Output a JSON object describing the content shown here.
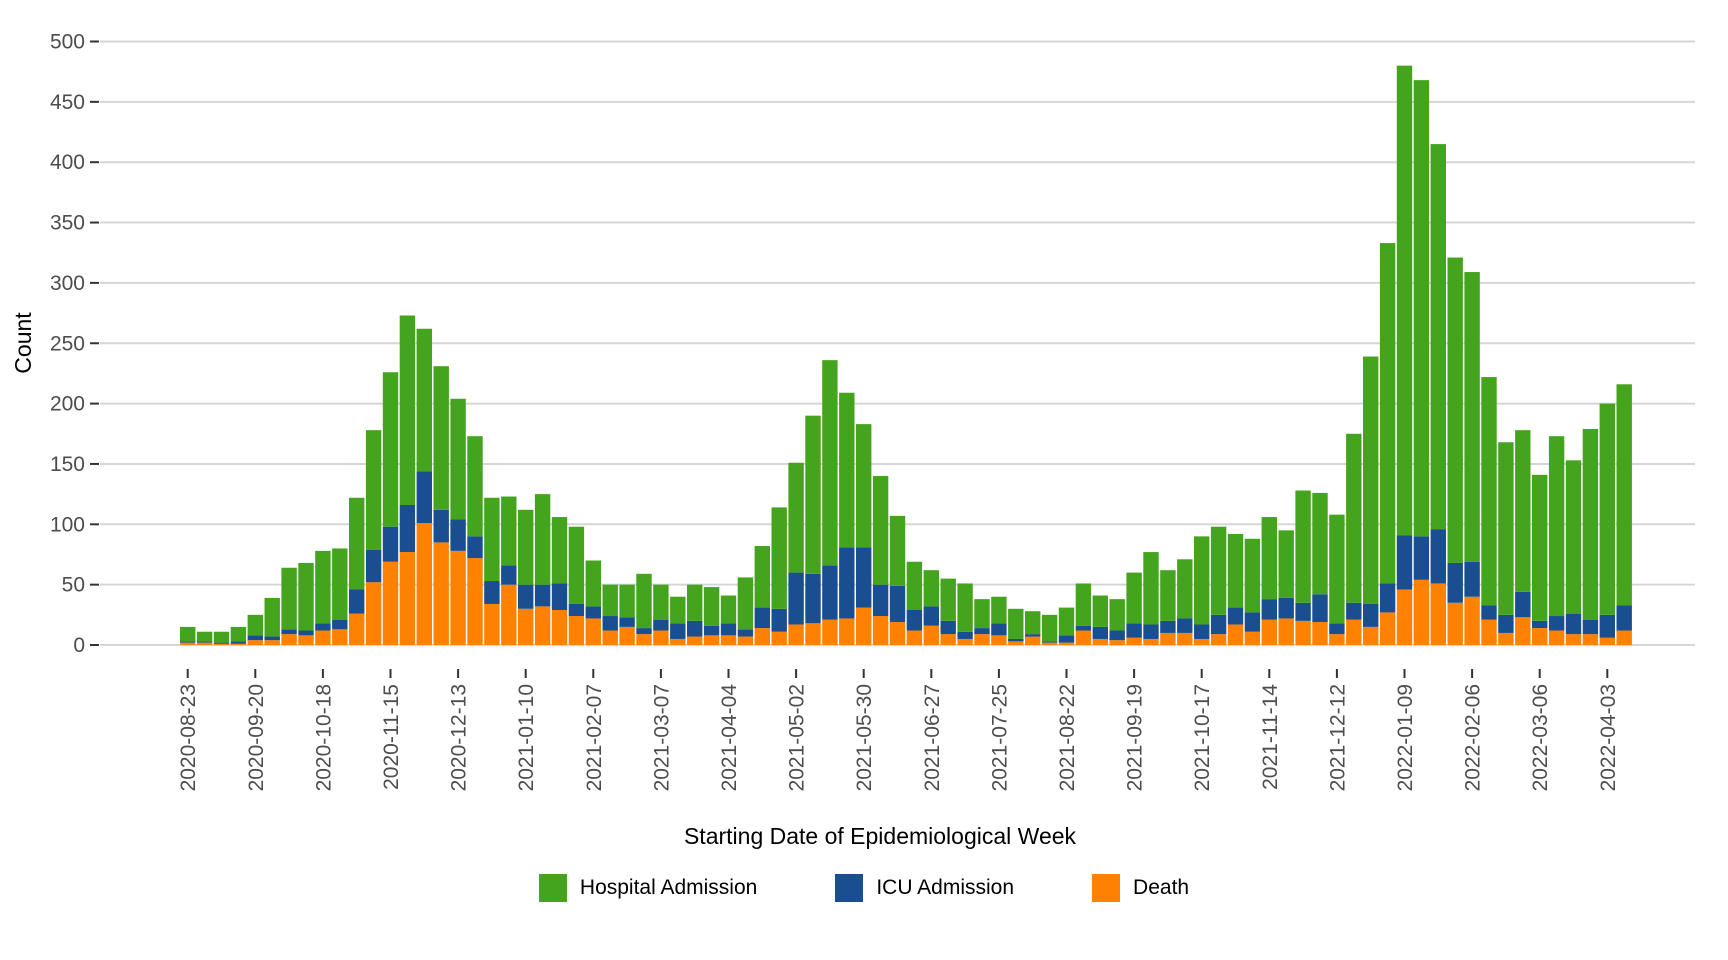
{
  "chart_data": {
    "type": "bar",
    "stacked": true,
    "title": "",
    "xlabel": "Starting Date of Epidemiological Week",
    "ylabel": "Count",
    "ylim": [
      0,
      500
    ],
    "y_ticks": [
      0,
      50,
      100,
      150,
      200,
      250,
      300,
      350,
      400,
      450,
      500
    ],
    "grid": "major-horizontal",
    "legend_position": "bottom",
    "colors": {
      "hospital": "#45a41e",
      "icu": "#194e90",
      "death": "#ff8100",
      "gridline": "#d6d6d6",
      "tick": "#333333",
      "tick_label": "#4d4d4d",
      "axis_title": "#000000"
    },
    "x": [
      "2020-08-23",
      "2020-08-30",
      "2020-09-06",
      "2020-09-13",
      "2020-09-20",
      "2020-09-27",
      "2020-10-04",
      "2020-10-11",
      "2020-10-18",
      "2020-10-25",
      "2020-11-01",
      "2020-11-08",
      "2020-11-15",
      "2020-11-22",
      "2020-11-29",
      "2020-12-06",
      "2020-12-13",
      "2020-12-20",
      "2020-12-27",
      "2021-01-03",
      "2021-01-10",
      "2021-01-17",
      "2021-01-24",
      "2021-01-31",
      "2021-02-07",
      "2021-02-14",
      "2021-02-21",
      "2021-02-28",
      "2021-03-07",
      "2021-03-14",
      "2021-03-21",
      "2021-03-28",
      "2021-04-04",
      "2021-04-11",
      "2021-04-18",
      "2021-04-25",
      "2021-05-02",
      "2021-05-09",
      "2021-05-16",
      "2021-05-23",
      "2021-05-30",
      "2021-06-06",
      "2021-06-13",
      "2021-06-20",
      "2021-06-27",
      "2021-07-04",
      "2021-07-11",
      "2021-07-18",
      "2021-07-25",
      "2021-08-01",
      "2021-08-08",
      "2021-08-15",
      "2021-08-22",
      "2021-08-29",
      "2021-09-05",
      "2021-09-12",
      "2021-09-19",
      "2021-09-26",
      "2021-10-03",
      "2021-10-10",
      "2021-10-17",
      "2021-10-24",
      "2021-10-31",
      "2021-11-07",
      "2021-11-14",
      "2021-11-21",
      "2021-11-28",
      "2021-12-05",
      "2021-12-12",
      "2021-12-19",
      "2021-12-26",
      "2022-01-02",
      "2022-01-09",
      "2022-01-16",
      "2022-01-23",
      "2022-01-30",
      "2022-02-06",
      "2022-02-13",
      "2022-02-20",
      "2022-02-27",
      "2022-03-06",
      "2022-03-13",
      "2022-03-20",
      "2022-03-27",
      "2022-04-03",
      "2022-04-10"
    ],
    "x_ticks": [
      "2020-08-23",
      "2020-09-20",
      "2020-10-18",
      "2020-11-15",
      "2020-12-13",
      "2021-01-10",
      "2021-02-07",
      "2021-03-07",
      "2021-04-04",
      "2021-05-02",
      "2021-05-30",
      "2021-06-27",
      "2021-07-25",
      "2021-08-22",
      "2021-09-19",
      "2021-10-17",
      "2021-11-14",
      "2021-12-12",
      "2022-01-09",
      "2022-02-06",
      "2022-03-06",
      "2022-04-03"
    ],
    "stacking_order_bottom_to_top": [
      "Death",
      "ICU Admission",
      "Hospital Admission"
    ],
    "series": [
      {
        "name": "Hospital Admission",
        "key": "hospital",
        "values": [
          12,
          8,
          9,
          12,
          17,
          32,
          51,
          56,
          60,
          59,
          76,
          99,
          128,
          157,
          118,
          119,
          100,
          83,
          69,
          57,
          62,
          75,
          55,
          64,
          38,
          26,
          27,
          45,
          29,
          22,
          30,
          32,
          23,
          43,
          51,
          84,
          91,
          131,
          170,
          128,
          102,
          90,
          58,
          40,
          30,
          35,
          40,
          24,
          22,
          25,
          19,
          22,
          23,
          35,
          26,
          26,
          42,
          60,
          42,
          49,
          73,
          73,
          61,
          61,
          68,
          56,
          93,
          84,
          90,
          140,
          205,
          282,
          389,
          378,
          319,
          253,
          240,
          189,
          143,
          134,
          121,
          149,
          127,
          158,
          175,
          183
        ]
      },
      {
        "name": "ICU Admission",
        "key": "icu",
        "values": [
          1,
          1,
          1,
          2,
          4,
          3,
          4,
          4,
          6,
          8,
          20,
          27,
          29,
          39,
          43,
          27,
          26,
          18,
          19,
          16,
          20,
          18,
          22,
          10,
          10,
          12,
          8,
          5,
          9,
          13,
          13,
          8,
          10,
          6,
          17,
          19,
          43,
          41,
          45,
          59,
          50,
          26,
          30,
          17,
          16,
          11,
          6,
          5,
          10,
          2,
          2,
          1,
          6,
          4,
          10,
          8,
          12,
          12,
          10,
          12,
          12,
          16,
          14,
          16,
          17,
          17,
          15,
          23,
          9,
          14,
          19,
          24,
          45,
          36,
          45,
          33,
          29,
          12,
          15,
          21,
          6,
          12,
          17,
          12,
          19,
          21
        ]
      },
      {
        "name": "Death",
        "key": "death",
        "values": [
          2,
          2,
          1,
          1,
          4,
          4,
          9,
          8,
          12,
          13,
          26,
          52,
          69,
          77,
          101,
          85,
          78,
          72,
          34,
          50,
          30,
          32,
          29,
          24,
          22,
          12,
          15,
          9,
          12,
          5,
          7,
          8,
          8,
          7,
          14,
          11,
          17,
          18,
          21,
          22,
          31,
          24,
          19,
          12,
          16,
          9,
          5,
          9,
          8,
          3,
          7,
          2,
          2,
          12,
          5,
          4,
          6,
          5,
          10,
          10,
          5,
          9,
          17,
          11,
          21,
          22,
          20,
          19,
          9,
          21,
          15,
          27,
          46,
          54,
          51,
          35,
          40,
          21,
          10,
          23,
          14,
          12,
          9,
          9,
          6,
          12
        ]
      }
    ]
  }
}
